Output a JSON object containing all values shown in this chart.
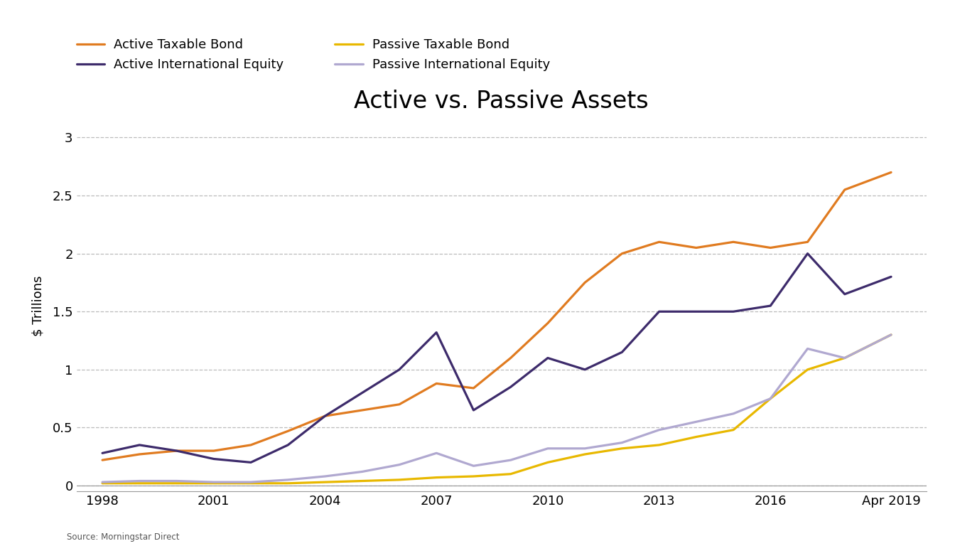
{
  "title": "Active vs. Passive Assets",
  "ylabel": "$ Trillions",
  "source": "Source: Morningstar Direct",
  "x_labels": [
    "1998",
    "2001",
    "2004",
    "2007",
    "2010",
    "2013",
    "2016",
    "Apr 2019"
  ],
  "x_ticks": [
    1998,
    2001,
    2004,
    2007,
    2010,
    2013,
    2016,
    2019.25
  ],
  "ylim": [
    -0.05,
    3.15
  ],
  "yticks": [
    0,
    0.5,
    1.0,
    1.5,
    2.0,
    2.5,
    3.0
  ],
  "series": {
    "active_taxable_bond": {
      "label": "Active Taxable Bond",
      "color": "#E07B20",
      "linewidth": 2.3,
      "x": [
        1998,
        1999,
        2000,
        2001,
        2002,
        2003,
        2004,
        2005,
        2006,
        2007,
        2008,
        2009,
        2010,
        2011,
        2012,
        2013,
        2014,
        2015,
        2016,
        2017,
        2018,
        2019.25
      ],
      "y": [
        0.22,
        0.27,
        0.3,
        0.3,
        0.35,
        0.47,
        0.6,
        0.65,
        0.7,
        0.88,
        0.84,
        1.1,
        1.4,
        1.75,
        2.0,
        2.1,
        2.05,
        2.1,
        2.05,
        2.1,
        2.55,
        2.7
      ]
    },
    "passive_taxable_bond": {
      "label": "Passive Taxable Bond",
      "color": "#E8B800",
      "linewidth": 2.3,
      "x": [
        1998,
        1999,
        2000,
        2001,
        2002,
        2003,
        2004,
        2005,
        2006,
        2007,
        2008,
        2009,
        2010,
        2011,
        2012,
        2013,
        2014,
        2015,
        2016,
        2017,
        2018,
        2019.25
      ],
      "y": [
        0.02,
        0.02,
        0.02,
        0.02,
        0.02,
        0.02,
        0.03,
        0.04,
        0.05,
        0.07,
        0.08,
        0.1,
        0.2,
        0.27,
        0.32,
        0.35,
        0.42,
        0.48,
        0.75,
        1.0,
        1.1,
        1.3
      ]
    },
    "active_intl_equity": {
      "label": "Active International Equity",
      "color": "#3D2B6B",
      "linewidth": 2.3,
      "x": [
        1998,
        1999,
        2000,
        2001,
        2002,
        2003,
        2004,
        2005,
        2006,
        2007,
        2008,
        2009,
        2010,
        2011,
        2012,
        2013,
        2014,
        2015,
        2016,
        2017,
        2018,
        2019.25
      ],
      "y": [
        0.28,
        0.35,
        0.3,
        0.23,
        0.2,
        0.35,
        0.6,
        0.8,
        1.0,
        1.32,
        0.65,
        0.85,
        1.1,
        1.0,
        1.15,
        1.5,
        1.5,
        1.5,
        1.55,
        2.0,
        1.65,
        1.8
      ]
    },
    "passive_intl_equity": {
      "label": "Passive International Equity",
      "color": "#B0A8D0",
      "linewidth": 2.3,
      "x": [
        1998,
        1999,
        2000,
        2001,
        2002,
        2003,
        2004,
        2005,
        2006,
        2007,
        2008,
        2009,
        2010,
        2011,
        2012,
        2013,
        2014,
        2015,
        2016,
        2017,
        2018,
        2019.25
      ],
      "y": [
        0.03,
        0.04,
        0.04,
        0.03,
        0.03,
        0.05,
        0.08,
        0.12,
        0.18,
        0.28,
        0.17,
        0.22,
        0.32,
        0.32,
        0.37,
        0.48,
        0.55,
        0.62,
        0.75,
        1.18,
        1.1,
        1.3
      ]
    }
  },
  "background_color": "#FFFFFF",
  "grid_color": "#BBBBBB",
  "title_fontsize": 24,
  "label_fontsize": 13,
  "legend_fontsize": 13,
  "tick_fontsize": 13
}
